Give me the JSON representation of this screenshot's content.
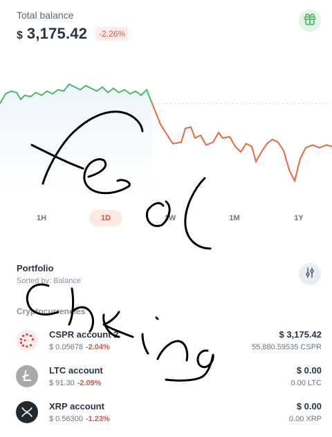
{
  "header": {
    "title": "Total balance",
    "currency_symbol": "$",
    "balance": "3,175.42",
    "change": "-2.26%"
  },
  "icons": {
    "gift": "gift-icon",
    "filter": "sliders-icon"
  },
  "colors": {
    "up": "#4ab866",
    "down": "#e8673f",
    "accent": "#e0533d",
    "gift_bg": "#e2f5e7"
  },
  "ranges": [
    {
      "label": "1H",
      "active": false
    },
    {
      "label": "1D",
      "active": true
    },
    {
      "label": "1W",
      "active": false
    },
    {
      "label": "1M",
      "active": false
    },
    {
      "label": "1Y",
      "active": false
    }
  ],
  "portfolio": {
    "title": "Portfolio",
    "sorted_by": "Sorted by: Balance"
  },
  "section_label": "Cryptocurrencies",
  "accounts": [
    {
      "name": "CSPR account 2",
      "price": "$ 0.05678",
      "change": "-2.04%",
      "value": "$ 3,175.42",
      "balance": "55,880.59535 CSPR",
      "icon": "cspr-icon"
    },
    {
      "name": "LTC account",
      "price": "$ 91.30",
      "change": "-2.09%",
      "value": "$ 0.00",
      "balance": "0.00 LTC",
      "icon": "ltc-icon"
    },
    {
      "name": "XRP account",
      "price": "$ 0.56300",
      "change": "-1.23%",
      "value": "$ 0.00",
      "balance": "0.00 XRP",
      "icon": "xrp-icon"
    }
  ]
}
